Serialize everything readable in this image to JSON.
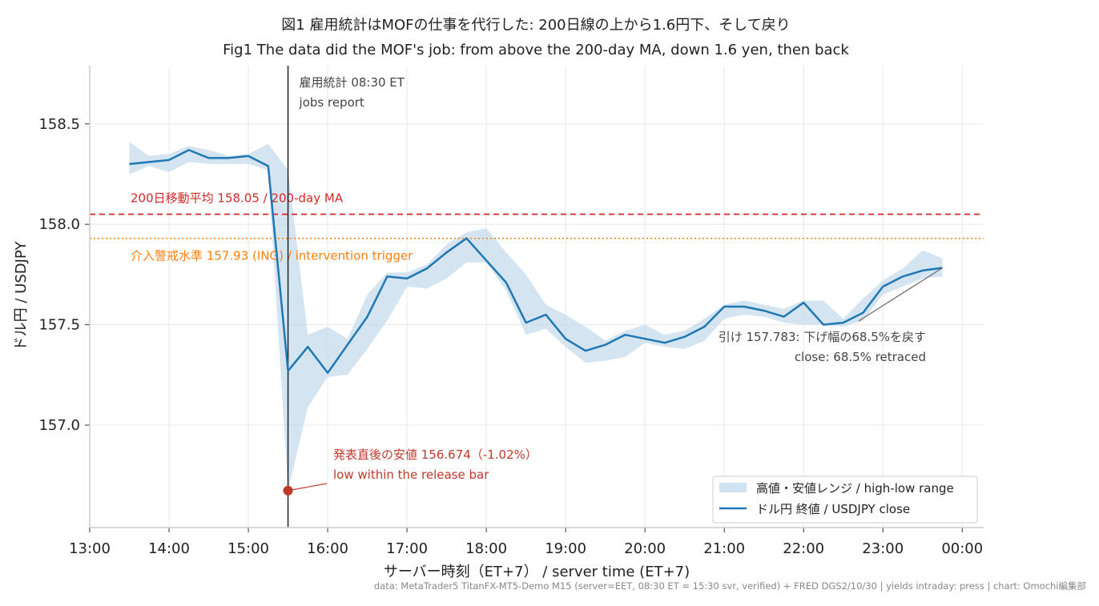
{
  "chart_data": {
    "type": "line",
    "title": "図1 雇用統計はMOFの仕事を代行した: 200日線の上から1.6円下、そして戻り",
    "subtitle": "Fig1 The data did the MOF's job: from above the 200-day MA, down 1.6 yen, then back",
    "xlabel": "サーバー時刻（ET+7） / server time (ET+7)",
    "ylabel": "ドル円 / USDJPY",
    "xlim": [
      13.0,
      24.27
    ],
    "ylim": [
      156.49,
      158.79
    ],
    "x_ticks": [
      "13:00",
      "14:00",
      "15:00",
      "16:00",
      "17:00",
      "18:00",
      "19:00",
      "20:00",
      "21:00",
      "22:00",
      "23:00",
      "00:00"
    ],
    "x_tick_values": [
      13,
      14,
      15,
      16,
      17,
      18,
      19,
      20,
      21,
      22,
      23,
      24
    ],
    "y_ticks": [
      "157.0",
      "157.5",
      "158.0",
      "158.5"
    ],
    "y_tick_values": [
      157.0,
      157.5,
      158.0,
      158.5
    ],
    "grid": true,
    "legend_position": "lower-right",
    "series": [
      {
        "name": "ドル円 終値 / USDJPY close",
        "color": "#1f77b4",
        "x": [
          13.5,
          13.75,
          14.0,
          14.25,
          14.5,
          14.75,
          15.0,
          15.25,
          15.5,
          15.75,
          16.0,
          16.25,
          16.5,
          16.75,
          17.0,
          17.25,
          17.5,
          17.75,
          18.0,
          18.25,
          18.5,
          18.75,
          19.0,
          19.25,
          19.5,
          19.75,
          20.0,
          20.25,
          20.5,
          20.75,
          21.0,
          21.25,
          21.5,
          21.75,
          22.0,
          22.25,
          22.5,
          22.75,
          23.0,
          23.25,
          23.5,
          23.75
        ],
        "y": [
          158.3,
          158.31,
          158.32,
          158.37,
          158.33,
          158.33,
          158.34,
          158.29,
          157.27,
          157.39,
          157.26,
          157.4,
          157.54,
          157.74,
          157.73,
          157.78,
          157.86,
          157.93,
          157.82,
          157.71,
          157.51,
          157.55,
          157.43,
          157.37,
          157.4,
          157.45,
          157.43,
          157.41,
          157.44,
          157.49,
          157.59,
          157.59,
          157.57,
          157.54,
          157.61,
          157.5,
          157.51,
          157.56,
          157.69,
          157.74,
          157.77,
          157.783
        ]
      },
      {
        "name": "高値・安値レンジ / high-low range",
        "color": "#c6dcec",
        "x": [
          13.5,
          13.75,
          14.0,
          14.25,
          14.5,
          14.75,
          15.0,
          15.25,
          15.5,
          15.75,
          16.0,
          16.25,
          16.5,
          16.75,
          17.0,
          17.25,
          17.5,
          17.75,
          18.0,
          18.25,
          18.5,
          18.75,
          19.0,
          19.25,
          19.5,
          19.75,
          20.0,
          20.25,
          20.5,
          20.75,
          21.0,
          21.25,
          21.5,
          21.75,
          22.0,
          22.25,
          22.5,
          22.75,
          23.0,
          23.25,
          23.5,
          23.75
        ],
        "high": [
          158.41,
          158.34,
          158.35,
          158.39,
          158.37,
          158.34,
          158.35,
          158.4,
          158.27,
          157.45,
          157.49,
          157.43,
          157.65,
          157.76,
          157.76,
          157.8,
          157.9,
          157.96,
          157.98,
          157.86,
          157.75,
          157.6,
          157.55,
          157.49,
          157.42,
          157.47,
          157.5,
          157.45,
          157.47,
          157.53,
          157.6,
          157.62,
          157.6,
          157.58,
          157.62,
          157.62,
          157.53,
          157.63,
          157.72,
          157.78,
          157.87,
          157.83
        ],
        "low": [
          158.25,
          158.29,
          158.26,
          158.31,
          158.3,
          158.3,
          158.3,
          158.27,
          156.674,
          157.09,
          157.24,
          157.25,
          157.38,
          157.52,
          157.69,
          157.68,
          157.73,
          157.81,
          157.81,
          157.67,
          157.45,
          157.48,
          157.39,
          157.31,
          157.32,
          157.34,
          157.41,
          157.39,
          157.38,
          157.42,
          157.53,
          157.55,
          157.54,
          157.51,
          157.5,
          157.5,
          157.49,
          157.52,
          157.65,
          157.69,
          157.73,
          157.74
        ]
      }
    ],
    "reference_lines": {
      "ma200": {
        "value": 158.05,
        "label": "200日移動平均 158.05 / 200-day MA",
        "color": "#d62728"
      },
      "intervention": {
        "value": 157.93,
        "label": "介入警戒水準 157.93 (ING) / intervention trigger",
        "color": "#ff7f0e"
      },
      "release": {
        "x": 15.5,
        "label1": "雇用統計 08:30 ET",
        "label2": "jobs report",
        "color": "#222222"
      }
    },
    "annotations": {
      "low_point": {
        "x": 15.5,
        "y": 156.674,
        "label1": "発表直後の安値 156.674（-1.02%）",
        "label2": "low within the release bar",
        "color": "#c0392b"
      },
      "close_note": {
        "x": 23.75,
        "y": 157.783,
        "label1": "引け 157.783: 下げ幅の68.5%を戻す",
        "label2": "close: 68.5% retraced"
      }
    },
    "footer": "data: MetaTrader5 TitanFX-MT5-Demo M15 (server=EET, 08:30 ET = 15:30 svr, verified) + FRED DGS2/10/30 | yields intraday: press | chart: Omochi編集部"
  }
}
